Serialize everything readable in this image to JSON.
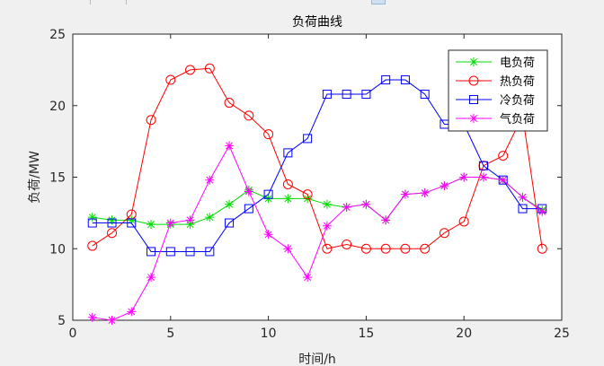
{
  "chart_data": {
    "type": "line",
    "title": "负荷曲线",
    "xlabel": "时间/h",
    "ylabel": "负荷/MW",
    "xlim": [
      0,
      25
    ],
    "ylim": [
      5,
      25
    ],
    "xticks": [
      "0",
      "5",
      "10",
      "15",
      "20",
      "25"
    ],
    "yticks": [
      "5",
      "10",
      "15",
      "20",
      "25"
    ],
    "grid": false,
    "legend_position": "top-right",
    "x": [
      1,
      2,
      3,
      4,
      5,
      6,
      7,
      8,
      9,
      10,
      11,
      12,
      13,
      14,
      15,
      16,
      17,
      18,
      19,
      20,
      21,
      22,
      23,
      24
    ],
    "series": [
      {
        "name": "电负荷",
        "color": "#00dd00",
        "marker": "asterisk",
        "values": [
          12.2,
          12.0,
          12.0,
          11.7,
          11.7,
          11.7,
          12.2,
          13.1,
          14.1,
          13.5,
          13.5,
          13.5,
          13.1,
          12.9,
          13.1,
          12.0,
          13.8,
          13.9,
          14.4,
          15.0,
          15.0,
          14.8,
          13.6,
          12.7
        ]
      },
      {
        "name": "热负荷",
        "color": "#ff0000",
        "marker": "circle",
        "values": [
          10.2,
          11.1,
          12.4,
          19.0,
          21.8,
          22.5,
          22.6,
          20.2,
          19.3,
          18.0,
          14.5,
          13.8,
          10.0,
          10.3,
          10.0,
          10.0,
          10.0,
          10.0,
          11.1,
          11.9,
          15.8,
          16.5,
          19.3,
          10.0
        ]
      },
      {
        "name": "冷负荷",
        "color": "#0000ff",
        "marker": "square",
        "values": [
          11.8,
          11.8,
          11.8,
          9.8,
          9.8,
          9.8,
          9.8,
          11.8,
          12.8,
          13.8,
          16.7,
          17.7,
          20.8,
          20.8,
          20.8,
          21.8,
          21.8,
          20.8,
          18.7,
          18.7,
          15.8,
          14.8,
          12.8,
          12.8
        ]
      },
      {
        "name": "气负荷",
        "color": "#ff00ff",
        "marker": "asterisk",
        "values": [
          5.2,
          5.0,
          5.6,
          8.0,
          11.8,
          12.0,
          14.8,
          17.2,
          14.0,
          11.0,
          10.0,
          8.0,
          11.6,
          12.9,
          13.1,
          12.0,
          13.8,
          13.9,
          14.4,
          15.0,
          15.0,
          14.8,
          13.6,
          12.6
        ]
      }
    ]
  }
}
